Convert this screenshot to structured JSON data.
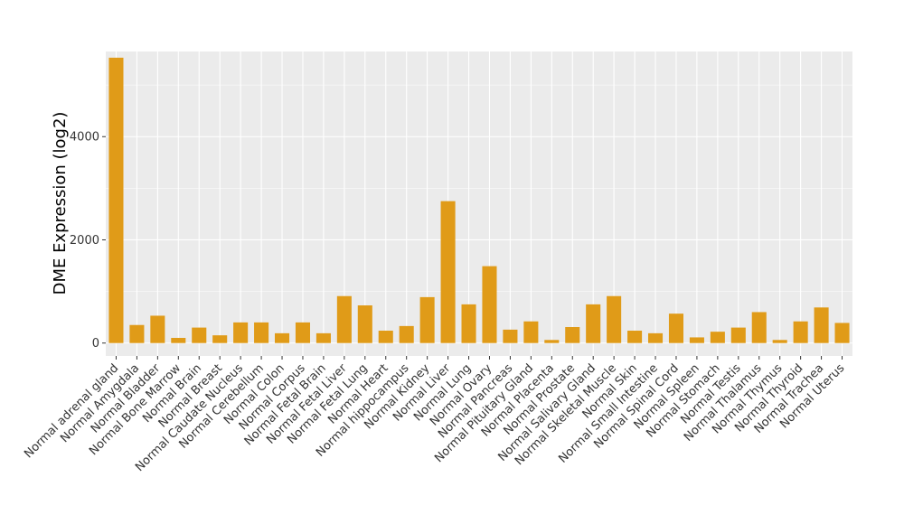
{
  "chart_data": {
    "type": "bar",
    "title": "",
    "xlabel": "",
    "ylabel": "DME Expression (log2)",
    "ylim": [
      -250,
      5650
    ],
    "yticks": [
      0,
      2000,
      4000
    ],
    "grid": true,
    "bar_color": "#E09B18",
    "panel_color": "#EBEBEB",
    "grid_color": "#FFFFFF",
    "categories": [
      "Normal adrenal gland",
      "Normal Amygdala",
      "Normal Bladder",
      "Normal Bone Marrow",
      "Normal Brain",
      "Normal Breast",
      "Normal Caudate Nucleus",
      "Normal Cerebellum",
      "Normal Colon",
      "Normal Corpus",
      "Normal Fetal Brain",
      "Normal Fetal Liver",
      "Normal Fetal Lung",
      "Normal Heart",
      "Normal hippocampus",
      "Normal Kidney",
      "Normal Liver",
      "Normal Lung",
      "Normal Ovary",
      "Normal Pancreas",
      "Normal Pituitary Gland",
      "Normal Placenta",
      "Normal Prostate",
      "Normal Salivary Gland",
      "Normal Skeletal Muscle",
      "Normal Skin",
      "Normal Small Intestine",
      "Normal Spinal Cord",
      "Normal Spleen",
      "Normal Stomach",
      "Normal Testis",
      "Normal Thalamus",
      "Normal Thymus",
      "Normal Thyroid",
      "Normal Trachea",
      "Normal Uterus"
    ],
    "values": [
      5530,
      350,
      530,
      100,
      300,
      150,
      400,
      400,
      190,
      400,
      190,
      910,
      730,
      240,
      330,
      890,
      2750,
      750,
      1490,
      260,
      420,
      60,
      310,
      750,
      910,
      240,
      190,
      570,
      110,
      220,
      300,
      600,
      60,
      420,
      690,
      390
    ]
  }
}
